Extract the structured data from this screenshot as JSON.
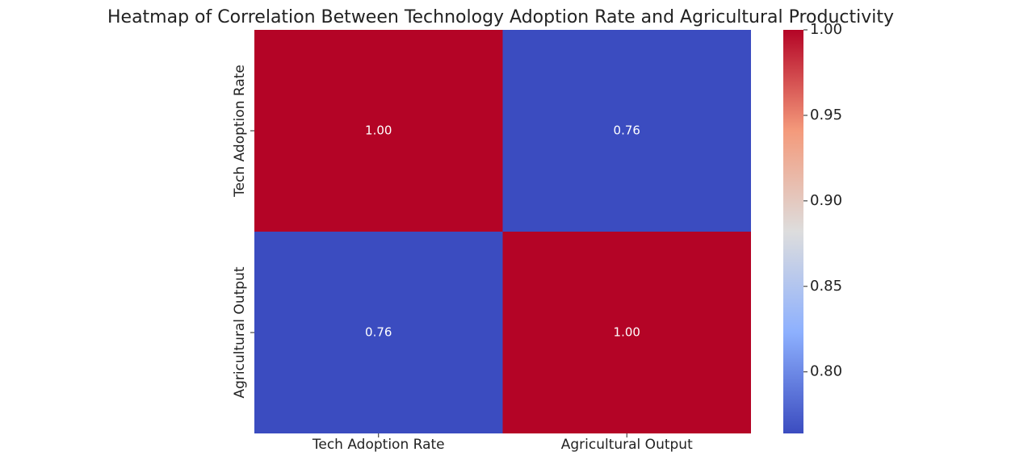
{
  "chart_data": {
    "type": "heatmap",
    "title": "Heatmap of Correlation Between Technology Adoption Rate and Agricultural Productivity",
    "x_categories": [
      "Tech Adoption Rate",
      "Agricultural Output"
    ],
    "y_categories": [
      "Tech Adoption Rate",
      "Agricultural Output"
    ],
    "values": [
      [
        1.0,
        0.764
      ],
      [
        0.764,
        1.0
      ]
    ],
    "value_labels": [
      [
        "1.00",
        "0.76"
      ],
      [
        "0.76",
        "1.00"
      ]
    ],
    "zlim": [
      0.764,
      1.0
    ],
    "zticks": [
      {
        "value": 0.8,
        "label": "0.80"
      },
      {
        "value": 0.85,
        "label": "0.85"
      },
      {
        "value": 0.9,
        "label": "0.90"
      },
      {
        "value": 0.95,
        "label": "0.95"
      },
      {
        "value": 1.0,
        "label": "1.00"
      }
    ],
    "colorscale": [
      "#3b4cc0",
      "#8db0fe",
      "#dddddd",
      "#f49a7b",
      "#b40426"
    ]
  }
}
